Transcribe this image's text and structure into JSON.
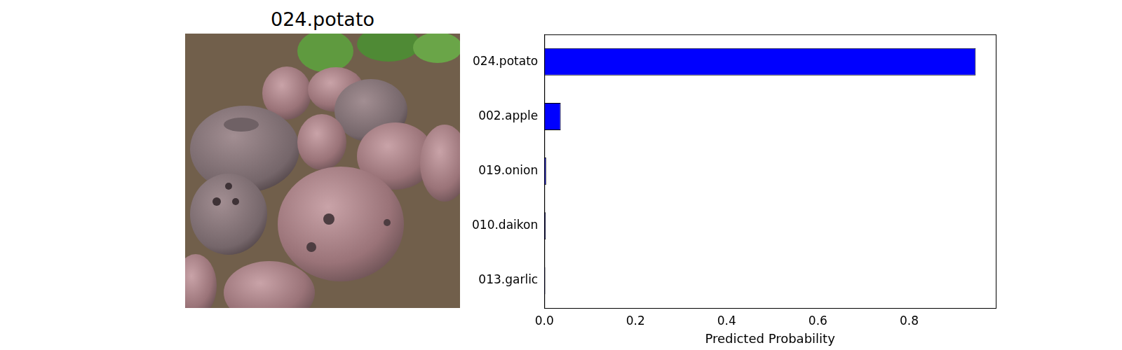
{
  "image": {
    "title": "024.potato"
  },
  "chart_data": {
    "type": "bar",
    "orientation": "horizontal",
    "categories": [
      "024.potato",
      "002.apple",
      "019.onion",
      "010.daikon",
      "013.garlic"
    ],
    "values": [
      0.946,
      0.036,
      0.004,
      0.003,
      0.002
    ],
    "color": "#0000ff",
    "x_label": "Predicted Probability",
    "xlim": [
      0,
      0.99
    ],
    "xticks": [
      {
        "value": 0,
        "label": "0.0"
      },
      0.2,
      0.4,
      0.6,
      0.8
    ],
    "grid": false
  }
}
